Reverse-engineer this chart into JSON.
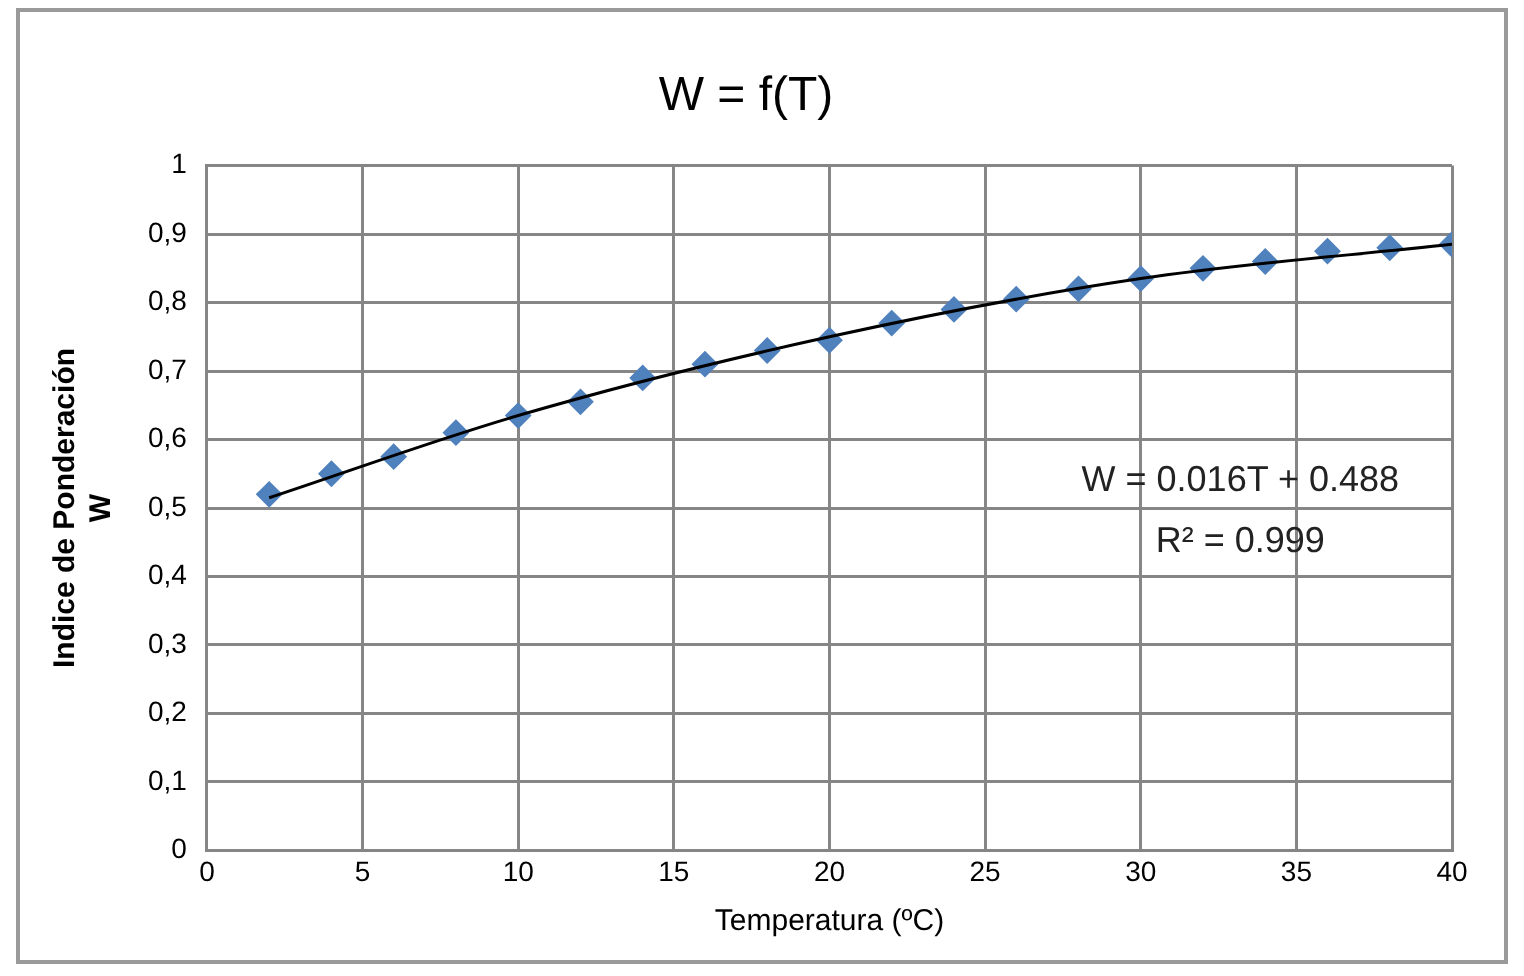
{
  "chart_data": {
    "type": "scatter",
    "title": "W = f(T)",
    "xlabel": "Temperatura (ºC)",
    "ylabel": "Indice de Ponderación\nW",
    "annotations": [
      "W = 0.016T + 0.488",
      "R² = 0.999"
    ],
    "series": [
      {
        "color": "#4f81bd",
        "marker": "diamond",
        "x": [
          2,
          4,
          6,
          8,
          10,
          12,
          14,
          16,
          18,
          20,
          22,
          24,
          26,
          28,
          30,
          32,
          34,
          36,
          38,
          40
        ],
        "values": [
          0.52,
          0.55,
          0.575,
          0.61,
          0.635,
          0.655,
          0.69,
          0.71,
          0.73,
          0.745,
          0.77,
          0.79,
          0.805,
          0.82,
          0.835,
          0.85,
          0.86,
          0.875,
          0.88,
          0.885
        ]
      },
      {
        "type": "line",
        "color": "#000000",
        "marker": "none",
        "x": [
          2,
          10,
          20,
          30,
          40
        ],
        "values": [
          0.515,
          0.635,
          0.75,
          0.835,
          0.885
        ]
      }
    ],
    "xlim": [
      0,
      40
    ],
    "xticks": [
      0,
      5,
      10,
      15,
      20,
      25,
      30,
      35,
      40
    ],
    "ylim": [
      0,
      1
    ],
    "yticks": [
      0,
      {
        "value": 0.1,
        "label": "0,1"
      },
      {
        "value": 0.2,
        "label": "0,2"
      },
      {
        "value": 0.3,
        "label": "0,3"
      },
      {
        "value": 0.4,
        "label": "0,4"
      },
      {
        "value": 0.5,
        "label": "0,5"
      },
      {
        "value": 0.6,
        "label": "0,6"
      },
      {
        "value": 0.7,
        "label": "0,7"
      },
      {
        "value": 0.8,
        "label": "0,8"
      },
      {
        "value": 0.9,
        "label": "0,9"
      },
      1
    ],
    "grid": true,
    "legend": false
  }
}
